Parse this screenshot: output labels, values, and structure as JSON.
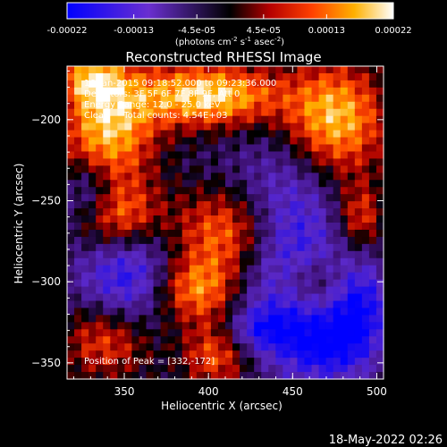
{
  "chart_data": {
    "type": "heatmap",
    "title": "Reconstructed RHESSI Image",
    "xlabel": "Heliocentric X (arcsec)",
    "ylabel": "Heliocentric Y (arcsec)",
    "x_ticks": [
      350,
      400,
      450,
      500
    ],
    "y_ticks": [
      -200,
      -250,
      -300,
      -350
    ],
    "xlim": [
      316,
      504
    ],
    "ylim": [
      -360,
      -167
    ],
    "colorbar": {
      "ticks": [
        "-0.00022",
        "-0.00013",
        "-4.5e-05",
        "4.5e-05",
        "0.00013",
        "0.00022"
      ],
      "ticks_values": [
        -0.00022,
        -0.00013,
        -4.5e-05,
        4.5e-05,
        0.00013,
        0.00022
      ],
      "range": [
        -0.00022,
        0.00022
      ],
      "unit_label": {
        "open": "(photons cm",
        "exp1": "-2",
        "mid1": " s",
        "exp2": "-1",
        "mid2": " asec",
        "exp3": "-2",
        "close": ")"
      }
    },
    "annotations": [
      "16-Jan-2015 09:18:52.000 to 09:23:36.000",
      "Detectors: 3F 5F 6F 7F 8F 9F, Att 0",
      "Energy Range: 12.0 - 25.0 keV",
      "Clean     Total counts: 4.54E+03"
    ],
    "peak_label": "Position of Peak = [332,-172]",
    "sources": [
      {
        "x": 400,
        "y": -185,
        "sx": 30,
        "sy": 14,
        "amp": 1.1
      },
      {
        "x": 340,
        "y": -205,
        "sx": 20,
        "sy": 30,
        "amp": 1.0
      },
      {
        "x": 475,
        "y": -200,
        "sx": 22,
        "sy": 25,
        "amp": 1.0
      },
      {
        "x": 345,
        "y": -260,
        "sx": 18,
        "sy": 15,
        "amp": 0.7
      },
      {
        "x": 415,
        "y": -270,
        "sx": 25,
        "sy": 20,
        "amp": 0.9
      },
      {
        "x": 390,
        "y": -305,
        "sx": 20,
        "sy": 15,
        "amp": 0.9
      },
      {
        "x": 340,
        "y": -335,
        "sx": 20,
        "sy": 18,
        "amp": 0.7
      },
      {
        "x": 405,
        "y": -345,
        "sx": 15,
        "sy": 15,
        "amp": 0.7
      },
      {
        "x": 490,
        "y": -260,
        "sx": 10,
        "sy": 15,
        "amp": 0.6
      },
      {
        "x": 460,
        "y": -300,
        "sx": 15,
        "sy": 12,
        "amp": 0.5
      },
      {
        "x": 330,
        "y": -175,
        "sx": 12,
        "sy": 10,
        "amp": 0.6
      }
    ],
    "sinks": [
      {
        "x": 445,
        "y": -280,
        "sx": 22,
        "sy": 40,
        "amp": 0.9
      },
      {
        "x": 355,
        "y": -300,
        "sx": 22,
        "sy": 22,
        "amp": 0.8
      },
      {
        "x": 470,
        "y": -340,
        "sx": 18,
        "sy": 15,
        "amp": 0.7
      },
      {
        "x": 330,
        "y": -245,
        "sx": 12,
        "sy": 15,
        "amp": 0.6
      },
      {
        "x": 490,
        "y": -315,
        "sx": 12,
        "sy": 20,
        "amp": 0.7
      },
      {
        "x": 430,
        "y": -330,
        "sx": 15,
        "sy": 10,
        "amp": 0.5
      }
    ]
  },
  "footer": {
    "timestamp": "18-May-2022 02:26"
  },
  "colors": {
    "background": "#000000",
    "foreground": "#ffffff"
  }
}
